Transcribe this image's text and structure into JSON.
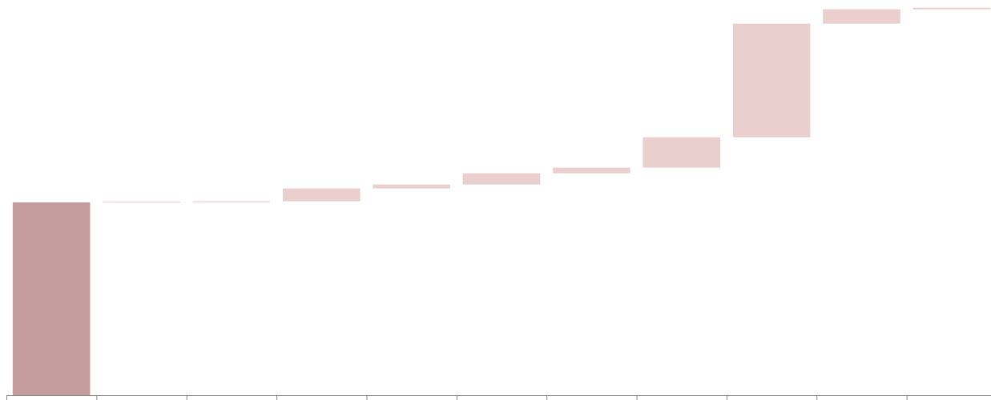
{
  "chart_data": {
    "type": "waterfall",
    "title": "",
    "xlabel": "",
    "ylabel": "",
    "categories": [
      "",
      "",
      "",
      "",
      "",
      "",
      "",
      "",
      "",
      "",
      ""
    ],
    "values": [
      241,
      1,
      0.4,
      16,
      5,
      14,
      7,
      38,
      142,
      18,
      2
    ],
    "bar_kinds": [
      "base",
      "delta",
      "delta",
      "delta",
      "delta",
      "delta",
      "delta",
      "delta",
      "delta",
      "delta",
      "delta"
    ],
    "ylim": [
      0,
      490
    ],
    "grid": false,
    "legend": "none",
    "colors": {
      "base": "#c49c9b",
      "delta": "#e9d0cf",
      "axis": "#888888"
    }
  }
}
